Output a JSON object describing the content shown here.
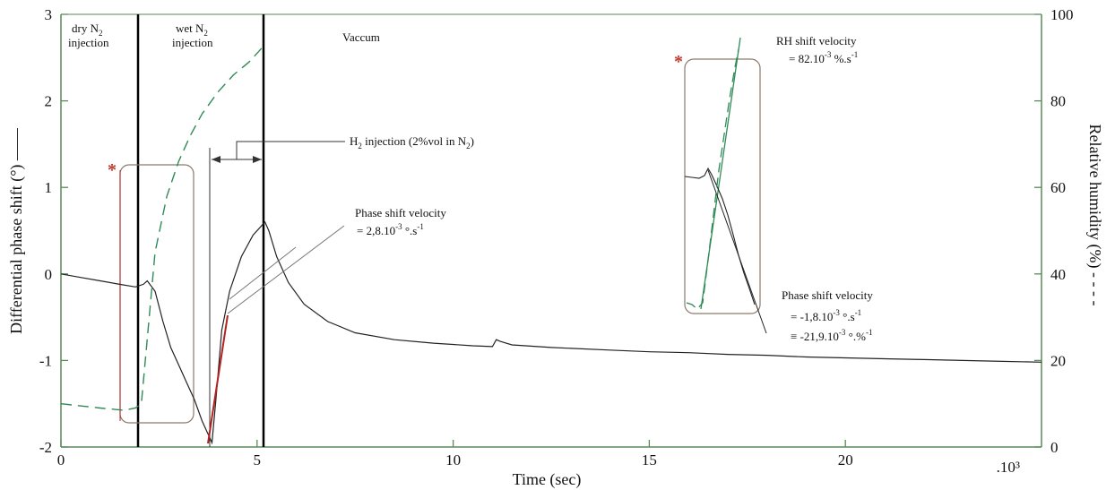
{
  "chart_data": {
    "type": "line",
    "xlabel": "Time (sec)",
    "x_multiplier": ".10³",
    "ylabel_left": "Differential phase shift (°) ——",
    "ylabel_right": "Relative humidity (%) - - - -",
    "xlim": [
      0,
      25
    ],
    "ylim_left": [
      -2,
      3
    ],
    "ylim_right": [
      0,
      100
    ],
    "x_ticks": [
      0,
      5,
      10,
      15,
      20
    ],
    "y_left_ticks": [
      -2,
      -1,
      0,
      1,
      2,
      3
    ],
    "y_right_ticks": [
      0,
      20,
      40,
      60,
      80,
      100
    ],
    "grid": false,
    "series": [
      {
        "axis": "left",
        "style": "solid",
        "color": "#222222",
        "x": [
          0,
          0.5,
          1.0,
          1.5,
          1.9,
          2.1,
          2.2,
          2.4,
          2.6,
          2.8,
          3.0,
          3.2,
          3.4,
          3.6,
          3.75,
          3.85,
          3.95,
          4.1,
          4.3,
          4.6,
          4.9,
          5.1,
          5.2,
          5.3,
          5.5,
          5.8,
          6.2,
          6.8,
          7.5,
          8.5,
          9.5,
          10.5,
          11.0,
          11.1,
          11.2,
          11.5,
          12.5,
          14,
          15,
          16,
          17,
          18,
          19,
          20,
          21,
          22,
          23,
          24,
          25
        ],
        "y": [
          0,
          -0.04,
          -0.08,
          -0.12,
          -0.15,
          -0.12,
          -0.08,
          -0.2,
          -0.55,
          -0.85,
          -1.05,
          -1.25,
          -1.45,
          -1.7,
          -1.85,
          -1.95,
          -1.45,
          -0.65,
          -0.2,
          0.2,
          0.45,
          0.55,
          0.6,
          0.5,
          0.2,
          -0.1,
          -0.35,
          -0.55,
          -0.68,
          -0.76,
          -0.8,
          -0.83,
          -0.84,
          -0.76,
          -0.78,
          -0.82,
          -0.85,
          -0.88,
          -0.9,
          -0.91,
          -0.93,
          -0.94,
          -0.96,
          -0.97,
          -0.98,
          -0.99,
          -1.0,
          -1.01,
          -1.02
        ]
      },
      {
        "axis": "right",
        "style": "dashed",
        "color": "#2e8b57",
        "x": [
          0,
          1.0,
          1.6,
          1.9,
          2.05,
          2.2,
          2.4,
          2.7,
          3.0,
          3.3,
          3.6,
          4.0,
          4.4,
          4.8,
          5.2
        ],
        "y": [
          10,
          9,
          8.5,
          9,
          10,
          25,
          45,
          58,
          66,
          72,
          77,
          82,
          86,
          89,
          93
        ]
      }
    ],
    "annotations": {
      "regions": [
        {
          "line1": "dry N",
          "sub": "2",
          "line2": "injection"
        },
        {
          "line1": "wet N",
          "sub": "2",
          "line2": "injection"
        },
        {
          "line1": "Vaccum"
        }
      ],
      "h2_injection": {
        "pre": "H",
        "sub": "2",
        "post": " injection (2%vol in N",
        "sub2": "2",
        "end": ")"
      },
      "phase_shift_velocity_1": {
        "title": "Phase shift velocity",
        "value_pre": "= 2,8.10",
        "sup": "-3",
        "unit": " °.s",
        "unit_sup": "-1"
      },
      "rh_shift_velocity": {
        "title": "RH  shift  velocity",
        "value_pre": "= 82.10",
        "sup": "-3",
        "unit": " %.s",
        "unit_sup": "-1"
      },
      "phase_shift_velocity_2": {
        "title": "Phase shift velocity",
        "value1_pre": "= -1,8.10",
        "sup1": "-3",
        "unit1": " °.s",
        "unit1_sup": "-1",
        "value2_pre": "≡ -21,9.10",
        "sup2": "-3",
        "unit2": " °.%",
        "unit2_sup": "-1"
      },
      "star": "*"
    },
    "colors": {
      "axis": "#5a8a5a",
      "phase": "#222222",
      "humidity": "#2e8b57",
      "box": "#8a7a6a",
      "red": "#b22222"
    }
  }
}
